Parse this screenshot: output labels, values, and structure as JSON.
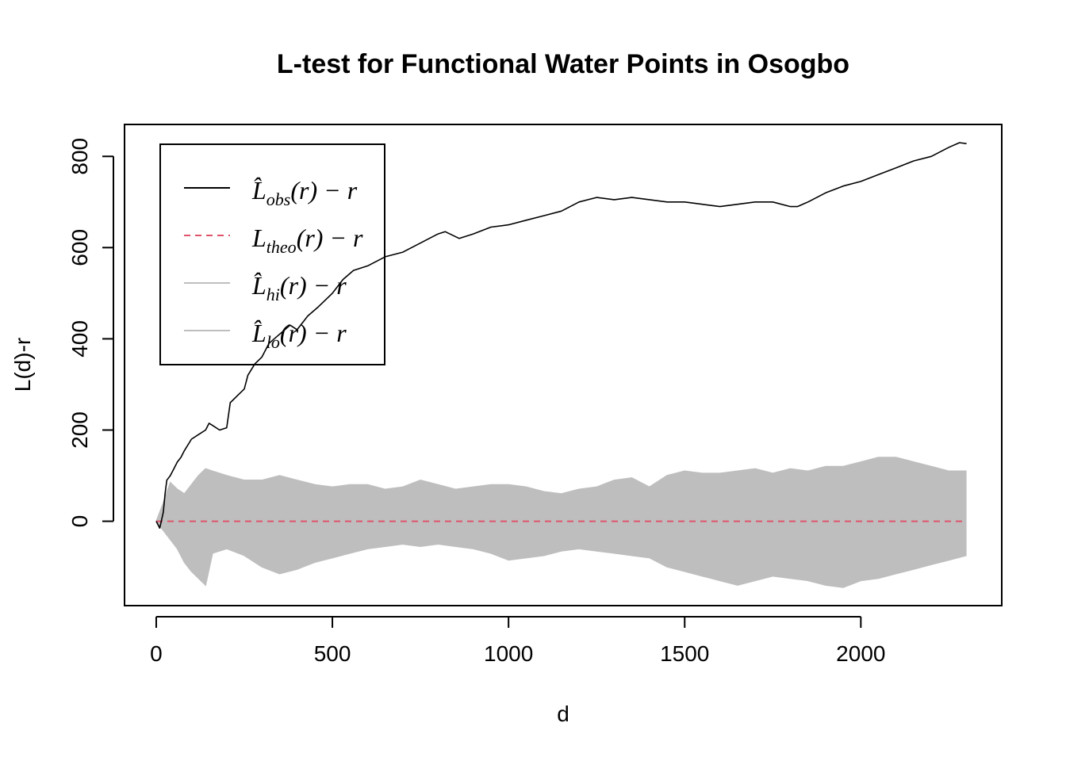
{
  "chart_data": {
    "type": "line",
    "title": "L-test for Functional Water Points in Osogbo",
    "xlabel": "d",
    "ylabel": "L(d)-r",
    "xlim": [
      -90,
      2400
    ],
    "ylim": [
      -185,
      870
    ],
    "xticks": [
      0,
      500,
      1000,
      1500,
      2000
    ],
    "yticks": [
      0,
      200,
      400,
      600,
      800
    ],
    "grid": false,
    "legend_position": "top-left",
    "series": [
      {
        "name": "L̂obs(r) − r",
        "legend_base": "L̂",
        "legend_sub": "obs",
        "legend_tail": "(r) − r",
        "color": "#000000",
        "style": "solid",
        "x": [
          0,
          10,
          20,
          25,
          30,
          40,
          50,
          60,
          70,
          80,
          100,
          120,
          140,
          150,
          160,
          180,
          200,
          210,
          230,
          250,
          260,
          280,
          300,
          320,
          350,
          380,
          400,
          430,
          460,
          500,
          530,
          560,
          600,
          650,
          700,
          750,
          800,
          820,
          860,
          900,
          950,
          1000,
          1050,
          1100,
          1150,
          1200,
          1250,
          1300,
          1350,
          1400,
          1450,
          1500,
          1550,
          1600,
          1650,
          1700,
          1750,
          1800,
          1820,
          1850,
          1900,
          1950,
          2000,
          2050,
          2100,
          2150,
          2200,
          2250,
          2280,
          2300
        ],
        "y": [
          0,
          -15,
          20,
          60,
          90,
          100,
          115,
          130,
          140,
          155,
          180,
          190,
          200,
          215,
          210,
          200,
          205,
          260,
          275,
          290,
          320,
          345,
          360,
          390,
          410,
          430,
          420,
          450,
          470,
          500,
          530,
          550,
          560,
          580,
          590,
          610,
          630,
          635,
          620,
          630,
          645,
          650,
          660,
          670,
          680,
          700,
          710,
          705,
          710,
          705,
          700,
          700,
          695,
          690,
          695,
          700,
          700,
          690,
          690,
          700,
          720,
          735,
          745,
          760,
          775,
          790,
          800,
          820,
          830,
          828
        ]
      },
      {
        "name": "Ltheo(r) − r",
        "legend_base": "L",
        "legend_sub": "theo",
        "legend_tail": "(r) − r",
        "color": "#DF536B",
        "style": "dashed",
        "x": [
          0,
          2300
        ],
        "y": [
          0,
          0
        ]
      },
      {
        "name": "L̂hi(r) − r",
        "legend_base": "L̂",
        "legend_sub": "hi",
        "legend_tail": "(r) − r",
        "color": "#BEBEBE",
        "style": "band-upper",
        "x": [
          0,
          20,
          40,
          60,
          80,
          100,
          120,
          140,
          160,
          200,
          250,
          300,
          350,
          400,
          450,
          500,
          550,
          600,
          650,
          700,
          750,
          800,
          850,
          900,
          950,
          1000,
          1050,
          1100,
          1150,
          1200,
          1250,
          1300,
          1350,
          1400,
          1450,
          1500,
          1550,
          1600,
          1650,
          1700,
          1750,
          1800,
          1850,
          1900,
          1950,
          2000,
          2050,
          2100,
          2150,
          2200,
          2250,
          2300
        ],
        "y": [
          0,
          40,
          85,
          70,
          60,
          80,
          100,
          115,
          110,
          100,
          90,
          90,
          100,
          90,
          80,
          75,
          80,
          80,
          70,
          75,
          90,
          80,
          70,
          75,
          80,
          80,
          75,
          65,
          60,
          70,
          75,
          90,
          95,
          75,
          100,
          110,
          105,
          105,
          110,
          115,
          105,
          115,
          110,
          120,
          120,
          130,
          140,
          140,
          130,
          120,
          110,
          110
        ]
      },
      {
        "name": "L̂lo(r) − r",
        "legend_base": "L̂",
        "legend_sub": "lo",
        "legend_tail": "(r) − r",
        "color": "#BEBEBE",
        "style": "band-lower",
        "x": [
          0,
          20,
          40,
          60,
          80,
          100,
          120,
          140,
          160,
          200,
          250,
          300,
          350,
          400,
          450,
          500,
          550,
          600,
          650,
          700,
          750,
          800,
          850,
          900,
          950,
          1000,
          1050,
          1100,
          1150,
          1200,
          1250,
          1300,
          1350,
          1400,
          1450,
          1500,
          1550,
          1600,
          1650,
          1700,
          1750,
          1800,
          1850,
          1900,
          1950,
          2000,
          2050,
          2100,
          2150,
          2200,
          2250,
          2300
        ],
        "y": [
          0,
          -20,
          -40,
          -60,
          -90,
          -110,
          -125,
          -140,
          -70,
          -60,
          -75,
          -100,
          -115,
          -105,
          -90,
          -80,
          -70,
          -60,
          -55,
          -50,
          -55,
          -50,
          -55,
          -60,
          -70,
          -85,
          -80,
          -75,
          -65,
          -60,
          -65,
          -70,
          -75,
          -80,
          -100,
          -110,
          -120,
          -130,
          -140,
          -130,
          -120,
          -125,
          -130,
          -140,
          -145,
          -130,
          -125,
          -115,
          -105,
          -95,
          -85,
          -75
        ]
      }
    ]
  }
}
